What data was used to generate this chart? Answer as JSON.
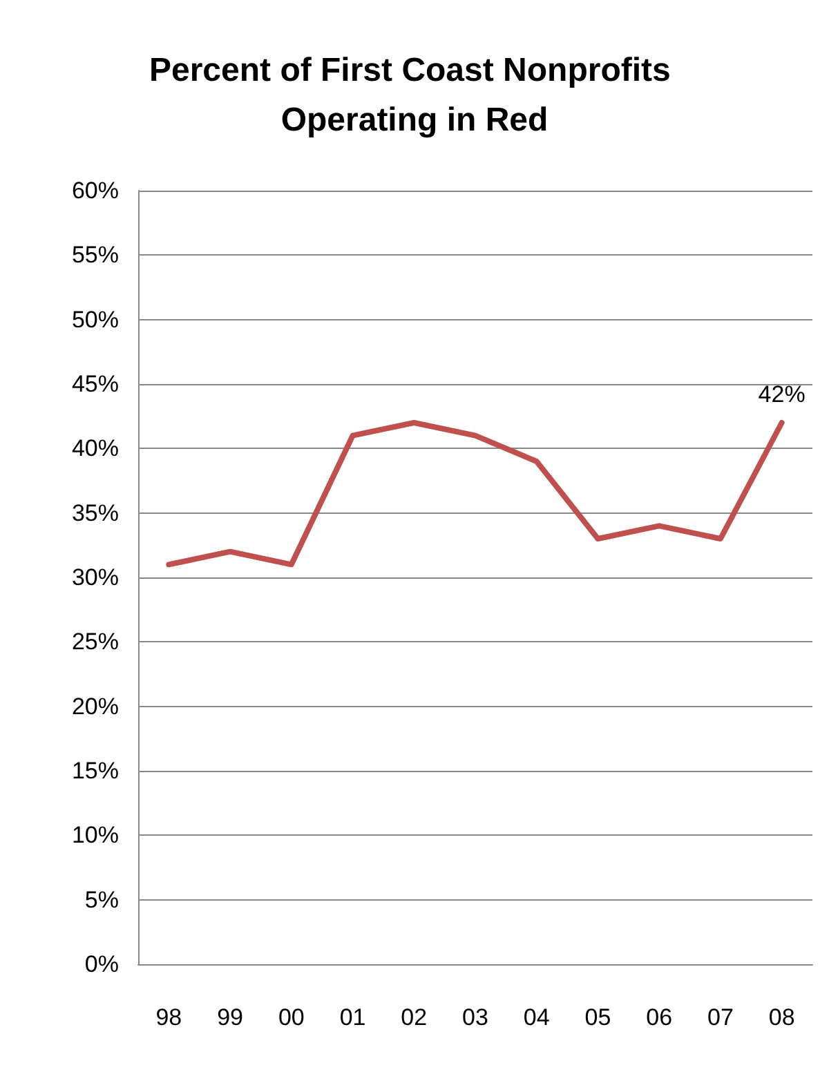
{
  "chart_data": {
    "type": "line",
    "title": "Percent of First Coast Nonprofits Operating in Red",
    "categories": [
      "98",
      "99",
      "00",
      "01",
      "02",
      "03",
      "04",
      "05",
      "06",
      "07",
      "08"
    ],
    "series": [
      {
        "color": "#c0504d",
        "values": [
          31,
          32,
          31,
          41,
          42,
          41,
          39,
          33,
          34,
          33,
          42
        ],
        "value_labels": [
          null,
          null,
          null,
          null,
          null,
          null,
          null,
          null,
          null,
          null,
          "42%"
        ]
      }
    ],
    "ylim": [
      0,
      60
    ],
    "yticks": [
      {
        "value": 0,
        "label": "0%"
      },
      {
        "value": 5,
        "label": "5%"
      },
      {
        "value": 10,
        "label": "10%"
      },
      {
        "value": 15,
        "label": "15%"
      },
      {
        "value": 20,
        "label": "20%"
      },
      {
        "value": 25,
        "label": "25%"
      },
      {
        "value": 30,
        "label": "30%"
      },
      {
        "value": 35,
        "label": "35%"
      },
      {
        "value": 40,
        "label": "40%"
      },
      {
        "value": 45,
        "label": "45%"
      },
      {
        "value": 50,
        "label": "50%"
      },
      {
        "value": 55,
        "label": "55%"
      },
      {
        "value": 60,
        "label": "60%"
      }
    ],
    "grid": "y",
    "marker": "none",
    "line_style": "solid"
  }
}
